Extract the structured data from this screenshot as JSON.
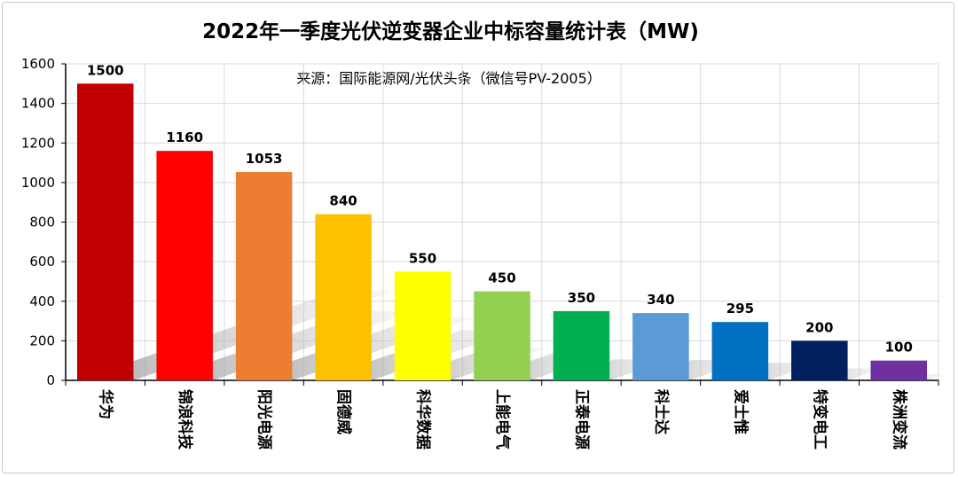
{
  "chart_data": {
    "type": "bar",
    "title": "2022年一季度光伏逆变器企业中标容量统计表（MW)",
    "annotation": "来源：国际能源网/光伏头条（微信号PV-2005）",
    "xlabel": "",
    "ylabel": "",
    "ylim": [
      0,
      1600
    ],
    "yticks": [
      0,
      200,
      400,
      600,
      800,
      1000,
      1200,
      1400,
      1600
    ],
    "grid": true,
    "legend": "none",
    "categories": [
      "华为",
      "锦浪科技",
      "阳光电源",
      "固德威",
      "科华数据",
      "上能电气",
      "正泰电源",
      "科士达",
      "爱士惟",
      "特变电工",
      "株洲变流"
    ],
    "values": [
      1500,
      1160,
      1053,
      840,
      550,
      450,
      350,
      340,
      295,
      200,
      100
    ],
    "value_labels": [
      "1500",
      "1160",
      "1053",
      "840",
      "550",
      "450",
      "350",
      "340",
      "295",
      "200",
      "100"
    ],
    "colors": [
      "#c00000",
      "#ff0000",
      "#ed7d31",
      "#ffc000",
      "#ffff00",
      "#92d050",
      "#00b050",
      "#5b9bd5",
      "#0070c0",
      "#002060",
      "#7030a0"
    ]
  }
}
